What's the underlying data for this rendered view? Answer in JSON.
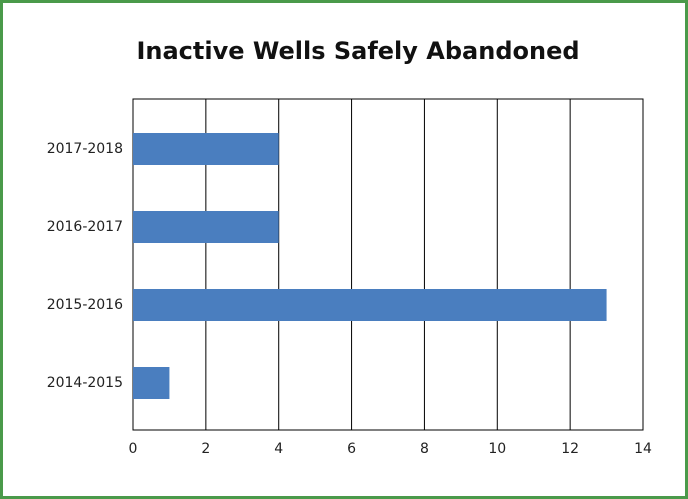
{
  "chart_data": {
    "type": "barh",
    "title": "Inactive Wells Safely Abandoned",
    "categories": [
      "2017-2018",
      "2016-2017",
      "2015-2016",
      "2014-2015"
    ],
    "values": [
      4,
      4,
      13,
      1
    ],
    "color": "#4a7ebf",
    "xlim": [
      0,
      14
    ],
    "xticks": [
      0,
      2,
      4,
      6,
      8,
      10,
      12,
      14
    ],
    "grid": true
  }
}
